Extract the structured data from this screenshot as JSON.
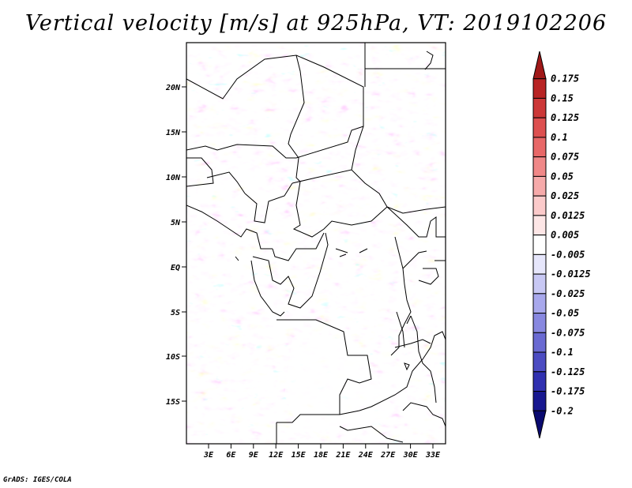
{
  "title": "Vertical velocity [m/s] at 925hPa, VT: 2019102206",
  "credit": "GrADS: IGES/COLA",
  "map": {
    "lat_labels": [
      "20N",
      "15N",
      "10N",
      "5N",
      "EQ",
      "5S",
      "10S",
      "15S"
    ],
    "lon_labels": [
      "3E",
      "6E",
      "9E",
      "12E",
      "15E",
      "18E",
      "21E",
      "24E",
      "27E",
      "30E",
      "33E"
    ]
  },
  "colorbar": {
    "levels": [
      "0.175",
      "0.15",
      "0.125",
      "0.1",
      "0.075",
      "0.05",
      "0.025",
      "0.0125",
      "0.005",
      "-0.005",
      "-0.0125",
      "-0.025",
      "-0.05",
      "-0.075",
      "-0.1",
      "-0.125",
      "-0.175",
      "-0.2"
    ],
    "colors": [
      "#a01818",
      "#b82424",
      "#cc3838",
      "#dd5050",
      "#e86868",
      "#f08888",
      "#f6aaaa",
      "#fbcaca",
      "#fde6e6",
      "#ffffff",
      "#e6e6fb",
      "#c8c8f4",
      "#a8a8ec",
      "#8888e0",
      "#6a6ad2",
      "#4c4cc2",
      "#3030b0",
      "#181890",
      "#0a0a70"
    ]
  }
}
